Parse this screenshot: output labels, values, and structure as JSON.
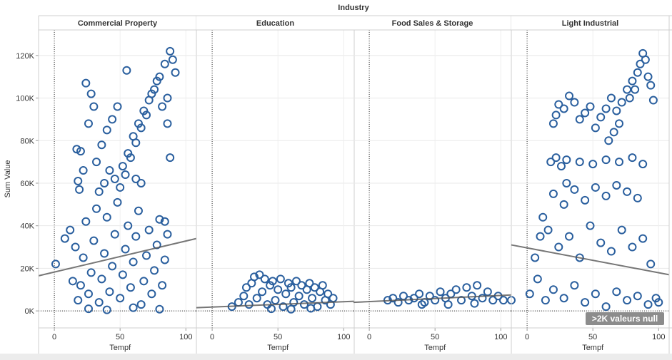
{
  "chart_data": {
    "type": "scatter",
    "title": "Industry",
    "ylabel": "Sum Value",
    "xlabel": "Tempf",
    "ylim": [
      -8000,
      132000
    ],
    "xlim": [
      -12,
      108
    ],
    "y_ticks": [
      0,
      20000,
      40000,
      60000,
      80000,
      100000,
      120000
    ],
    "y_tick_labels": [
      "0K",
      "20K",
      "40K",
      "60K",
      "80K",
      "100K",
      "120K"
    ],
    "x_ticks": [
      0,
      50,
      100
    ],
    "x_tick_labels": [
      "0",
      "50",
      "100"
    ],
    "grid": true,
    "marker_color": "#2a5f9e",
    "trend_color": "#555555",
    "panels": [
      {
        "name": "Commercial Property",
        "points": [
          [
            1,
            22000
          ],
          [
            8,
            34000
          ],
          [
            12,
            38000
          ],
          [
            14,
            14000
          ],
          [
            16,
            30000
          ],
          [
            17,
            76000
          ],
          [
            18,
            61000
          ],
          [
            19,
            57000
          ],
          [
            20,
            75000
          ],
          [
            22,
            66000
          ],
          [
            24,
            107000
          ],
          [
            26,
            88000
          ],
          [
            28,
            102000
          ],
          [
            30,
            96000
          ],
          [
            18,
            5000
          ],
          [
            20,
            12000
          ],
          [
            22,
            25000
          ],
          [
            24,
            42000
          ],
          [
            26,
            8000
          ],
          [
            28,
            18000
          ],
          [
            30,
            33000
          ],
          [
            32,
            48000
          ],
          [
            34,
            4000
          ],
          [
            36,
            15000
          ],
          [
            38,
            27000
          ],
          [
            40,
            44000
          ],
          [
            42,
            9000
          ],
          [
            44,
            21000
          ],
          [
            46,
            36000
          ],
          [
            48,
            51000
          ],
          [
            50,
            6000
          ],
          [
            52,
            17000
          ],
          [
            54,
            29000
          ],
          [
            56,
            40000
          ],
          [
            58,
            11000
          ],
          [
            60,
            23000
          ],
          [
            62,
            35000
          ],
          [
            64,
            47000
          ],
          [
            66,
            3000
          ],
          [
            68,
            14000
          ],
          [
            70,
            26000
          ],
          [
            72,
            38000
          ],
          [
            74,
            8000
          ],
          [
            76,
            19000
          ],
          [
            78,
            31000
          ],
          [
            80,
            43000
          ],
          [
            82,
            12000
          ],
          [
            84,
            24000
          ],
          [
            86,
            36000
          ],
          [
            32,
            70000
          ],
          [
            36,
            78000
          ],
          [
            40,
            85000
          ],
          [
            44,
            90000
          ],
          [
            48,
            96000
          ],
          [
            52,
            68000
          ],
          [
            56,
            74000
          ],
          [
            60,
            82000
          ],
          [
            64,
            88000
          ],
          [
            68,
            94000
          ],
          [
            72,
            99000
          ],
          [
            76,
            104000
          ],
          [
            80,
            110000
          ],
          [
            84,
            116000
          ],
          [
            88,
            122000
          ],
          [
            90,
            118000
          ],
          [
            92,
            112000
          ],
          [
            86,
            100000
          ],
          [
            82,
            96000
          ],
          [
            78,
            108000
          ],
          [
            74,
            102000
          ],
          [
            70,
            92000
          ],
          [
            66,
            86000
          ],
          [
            62,
            79000
          ],
          [
            58,
            72000
          ],
          [
            54,
            64000
          ],
          [
            50,
            58000
          ],
          [
            46,
            62000
          ],
          [
            42,
            66000
          ],
          [
            38,
            60000
          ],
          [
            34,
            56000
          ],
          [
            55,
            113000
          ],
          [
            62,
            62000
          ],
          [
            66,
            60000
          ],
          [
            88,
            72000
          ],
          [
            86,
            88000
          ],
          [
            84,
            42000
          ],
          [
            26,
            1000
          ],
          [
            40,
            500
          ],
          [
            60,
            1500
          ],
          [
            80,
            800
          ]
        ],
        "trend": [
          [
            -12,
            16500
          ],
          [
            108,
            34000
          ]
        ]
      },
      {
        "name": "Education",
        "points": [
          [
            15,
            2000
          ],
          [
            20,
            4000
          ],
          [
            24,
            7000
          ],
          [
            26,
            11000
          ],
          [
            28,
            3000
          ],
          [
            30,
            13000
          ],
          [
            32,
            16000
          ],
          [
            34,
            6000
          ],
          [
            36,
            17000
          ],
          [
            38,
            9000
          ],
          [
            40,
            15000
          ],
          [
            42,
            3000
          ],
          [
            44,
            12000
          ],
          [
            46,
            14000
          ],
          [
            48,
            5000
          ],
          [
            50,
            10000
          ],
          [
            52,
            15000
          ],
          [
            54,
            2000
          ],
          [
            56,
            8000
          ],
          [
            58,
            13000
          ],
          [
            60,
            11000
          ],
          [
            62,
            4000
          ],
          [
            64,
            14000
          ],
          [
            66,
            7000
          ],
          [
            68,
            12000
          ],
          [
            70,
            3000
          ],
          [
            72,
            10000
          ],
          [
            74,
            13000
          ],
          [
            76,
            6000
          ],
          [
            78,
            11000
          ],
          [
            80,
            2000
          ],
          [
            82,
            9000
          ],
          [
            84,
            12000
          ],
          [
            86,
            5000
          ],
          [
            88,
            8000
          ],
          [
            90,
            3000
          ],
          [
            92,
            6000
          ],
          [
            45,
            1000
          ],
          [
            60,
            800
          ],
          [
            75,
            1200
          ]
        ],
        "trend": [
          [
            -12,
            1500
          ],
          [
            108,
            4500
          ]
        ]
      },
      {
        "name": "Food Sales & Storage",
        "points": [
          [
            14,
            5000
          ],
          [
            18,
            6000
          ],
          [
            22,
            4000
          ],
          [
            26,
            7000
          ],
          [
            30,
            5000
          ],
          [
            34,
            6000
          ],
          [
            38,
            8000
          ],
          [
            42,
            4000
          ],
          [
            46,
            7000
          ],
          [
            50,
            5000
          ],
          [
            54,
            9000
          ],
          [
            58,
            6000
          ],
          [
            62,
            8000
          ],
          [
            66,
            10000
          ],
          [
            70,
            5000
          ],
          [
            74,
            11000
          ],
          [
            78,
            7000
          ],
          [
            82,
            12000
          ],
          [
            86,
            6000
          ],
          [
            90,
            9000
          ],
          [
            94,
            5000
          ],
          [
            98,
            7000
          ],
          [
            102,
            5000
          ],
          [
            108,
            5000
          ],
          [
            60,
            3000
          ],
          [
            40,
            3000
          ],
          [
            80,
            3500
          ]
        ],
        "trend": [
          [
            -12,
            4000
          ],
          [
            108,
            7500
          ]
        ]
      },
      {
        "name": "Light Industrial",
        "points": [
          [
            2,
            8000
          ],
          [
            6,
            25000
          ],
          [
            8,
            15000
          ],
          [
            10,
            35000
          ],
          [
            12,
            44000
          ],
          [
            14,
            5000
          ],
          [
            16,
            38000
          ],
          [
            18,
            70000
          ],
          [
            20,
            88000
          ],
          [
            22,
            92000
          ],
          [
            24,
            97000
          ],
          [
            26,
            68000
          ],
          [
            28,
            95000
          ],
          [
            30,
            60000
          ],
          [
            32,
            101000
          ],
          [
            36,
            98000
          ],
          [
            40,
            90000
          ],
          [
            44,
            93000
          ],
          [
            48,
            96000
          ],
          [
            52,
            86000
          ],
          [
            56,
            91000
          ],
          [
            60,
            95000
          ],
          [
            64,
            100000
          ],
          [
            68,
            94000
          ],
          [
            72,
            98000
          ],
          [
            76,
            104000
          ],
          [
            80,
            108000
          ],
          [
            84,
            112000
          ],
          [
            86,
            116000
          ],
          [
            88,
            121000
          ],
          [
            90,
            118000
          ],
          [
            92,
            110000
          ],
          [
            94,
            106000
          ],
          [
            96,
            99000
          ],
          [
            82,
            104000
          ],
          [
            78,
            100000
          ],
          [
            70,
            88000
          ],
          [
            66,
            84000
          ],
          [
            62,
            80000
          ],
          [
            22,
            72000
          ],
          [
            30,
            71000
          ],
          [
            40,
            70000
          ],
          [
            50,
            69000
          ],
          [
            60,
            71000
          ],
          [
            70,
            70000
          ],
          [
            80,
            72000
          ],
          [
            88,
            69000
          ],
          [
            20,
            55000
          ],
          [
            28,
            50000
          ],
          [
            36,
            57000
          ],
          [
            44,
            52000
          ],
          [
            52,
            58000
          ],
          [
            60,
            54000
          ],
          [
            68,
            59000
          ],
          [
            76,
            56000
          ],
          [
            84,
            53000
          ],
          [
            24,
            30000
          ],
          [
            32,
            35000
          ],
          [
            40,
            25000
          ],
          [
            48,
            40000
          ],
          [
            56,
            32000
          ],
          [
            64,
            28000
          ],
          [
            72,
            38000
          ],
          [
            80,
            30000
          ],
          [
            88,
            34000
          ],
          [
            94,
            22000
          ],
          [
            20,
            10000
          ],
          [
            28,
            6000
          ],
          [
            36,
            12000
          ],
          [
            44,
            4000
          ],
          [
            52,
            8000
          ],
          [
            60,
            2000
          ],
          [
            68,
            9000
          ],
          [
            76,
            5000
          ],
          [
            84,
            7000
          ],
          [
            92,
            3000
          ],
          [
            98,
            6000
          ],
          [
            100,
            4000
          ]
        ],
        "trend": [
          [
            -12,
            31000
          ],
          [
            108,
            17000
          ]
        ]
      }
    ]
  },
  "overlay": {
    "null_badge": ">2K valeurs null"
  }
}
